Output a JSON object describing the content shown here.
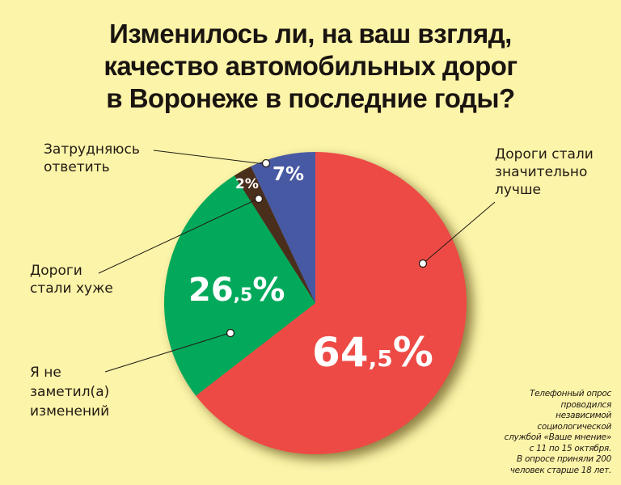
{
  "title": {
    "lines": [
      "Изменилось ли, на ваш взгляд,",
      "качество автомобильных дорог",
      "в Воронеже в последние годы?"
    ]
  },
  "labels": {
    "better": [
      "Дороги стали",
      "значительно",
      "лучше"
    ],
    "hard": [
      "Затрудняюсь",
      "ответить"
    ],
    "worse": [
      "Дороги",
      "стали хуже"
    ],
    "nochange": [
      "Я не",
      "заметил(а)",
      "изменений"
    ]
  },
  "pct_labels": {
    "better_int": "64",
    "better_dec": ",5",
    "nochange_int": "26",
    "nochange_dec": ",5",
    "worse": "2%",
    "hard": "7%",
    "percent": "%"
  },
  "note": [
    "Телефонный опрос",
    "проводился",
    "независимой",
    "социологической",
    "службой «Ваше мнение»",
    "с 11 по 15 октября.",
    "В опросе приняли 200",
    "человек старше 18 лет."
  ],
  "colors": {
    "background": "#fbf4a9",
    "better": "#ee4a45",
    "nochange": "#02a95b",
    "worse": "#4a2e1c",
    "hard": "#4859a3"
  },
  "chart_data": {
    "type": "pie",
    "title": "Изменилось ли, на ваш взгляд, качество автомобильных дорог в Воронеже в последние годы?",
    "categories": [
      "Дороги стали значительно лучше",
      "Я не заметил(а) изменений",
      "Дороги стали хуже",
      "Затрудняюсь ответить"
    ],
    "values": [
      64.5,
      26.5,
      2,
      7
    ],
    "unit": "%",
    "colors": [
      "#ee4a45",
      "#02a95b",
      "#4a2e1c",
      "#4859a3"
    ],
    "legend": "callout labels",
    "annotation": "Телефонный опрос проводился независимой социологической службой «Ваше мнение» с 11 по 15 октября. В опросе приняли 200 человек старше 18 лет."
  }
}
